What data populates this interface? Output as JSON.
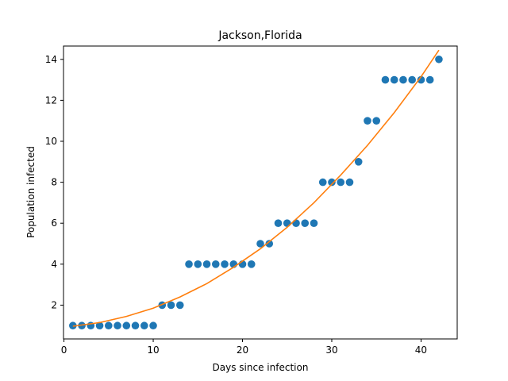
{
  "chart_data": {
    "type": "scatter",
    "title": "Jackson,Florida",
    "xlabel": "Days since infection",
    "ylabel": "Population infected",
    "xlim": [
      -0.05,
      44.05
    ],
    "ylim": [
      0.35,
      14.65
    ],
    "xticks": [
      0,
      10,
      20,
      30,
      40
    ],
    "yticks": [
      2,
      4,
      6,
      8,
      10,
      12,
      14
    ],
    "grid": false,
    "legend": "none",
    "series": [
      {
        "kind": "scatter",
        "color": "#1f77b4",
        "x": [
          1,
          2,
          3,
          4,
          5,
          6,
          7,
          8,
          9,
          10,
          11,
          12,
          13,
          14,
          15,
          16,
          17,
          18,
          19,
          20,
          21,
          22,
          23,
          24,
          25,
          26,
          27,
          28,
          29,
          30,
          31,
          32,
          33,
          34,
          35,
          36,
          37,
          38,
          39,
          40,
          41,
          42
        ],
        "y": [
          1,
          1,
          1,
          1,
          1,
          1,
          1,
          1,
          1,
          1,
          2,
          2,
          2,
          4,
          4,
          4,
          4,
          4,
          4,
          4,
          4,
          5,
          5,
          6,
          6,
          6,
          6,
          6,
          8,
          8,
          8,
          8,
          9,
          11,
          11,
          13,
          13,
          13,
          13,
          13,
          13,
          14
        ]
      },
      {
        "kind": "line",
        "color": "#ff7f0e",
        "x": [
          1,
          4,
          7,
          10,
          13,
          16,
          19,
          22,
          25,
          28,
          31,
          34,
          37,
          40,
          42
        ],
        "y": [
          0.97,
          1.15,
          1.45,
          1.85,
          2.4,
          3.05,
          3.85,
          4.75,
          5.8,
          7.0,
          8.35,
          9.8,
          11.4,
          13.15,
          14.45
        ]
      }
    ]
  }
}
